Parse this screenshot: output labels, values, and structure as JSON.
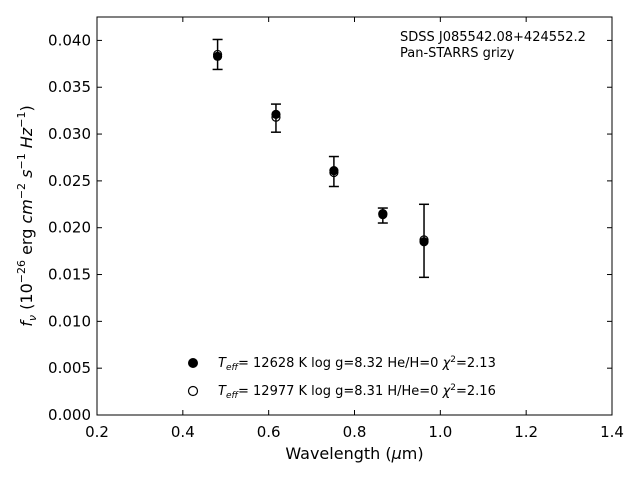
{
  "chart_data": {
    "type": "scatter",
    "title": "",
    "xlabel": "Wavelength (μm)",
    "ylabel": "f_ν (10^-26 erg cm^-2 s^-1 Hz^-1)",
    "xlim": [
      0.2,
      1.4
    ],
    "ylim": [
      0.0,
      0.0425
    ],
    "xticks": [
      "0.2",
      "0.4",
      "0.6",
      "0.8",
      "1.0",
      "1.2",
      "1.4"
    ],
    "yticks": [
      "0.000",
      "0.005",
      "0.010",
      "0.015",
      "0.020",
      "0.025",
      "0.030",
      "0.035",
      "0.040"
    ],
    "annotations": [
      "SDSS J085542.08+424552.2",
      "Pan-STARRS grizy"
    ],
    "observed": {
      "x": [
        0.481,
        0.617,
        0.752,
        0.866,
        0.962
      ],
      "y": [
        0.0385,
        0.0317,
        0.026,
        0.0213,
        0.0186
      ],
      "yerr": [
        0.0016,
        0.0015,
        0.0016,
        0.0008,
        0.0039
      ]
    },
    "series": [
      {
        "name": "T_eff= 12628 K  log g=8.32  He/H=0  χ²=2.13",
        "marker": "filled",
        "x": [
          0.481,
          0.617,
          0.752,
          0.866,
          0.962
        ],
        "y": [
          0.0383,
          0.0321,
          0.0261,
          0.0214,
          0.0185
        ]
      },
      {
        "name": "T_eff= 12977 K  log g=8.31  H/He=0  χ²=2.16",
        "marker": "open",
        "x": [
          0.481,
          0.617,
          0.752,
          0.866,
          0.962
        ],
        "y": [
          0.0385,
          0.0318,
          0.0259,
          0.0215,
          0.0187
        ]
      }
    ],
    "legend_position": "bottom-center",
    "grid": false
  }
}
